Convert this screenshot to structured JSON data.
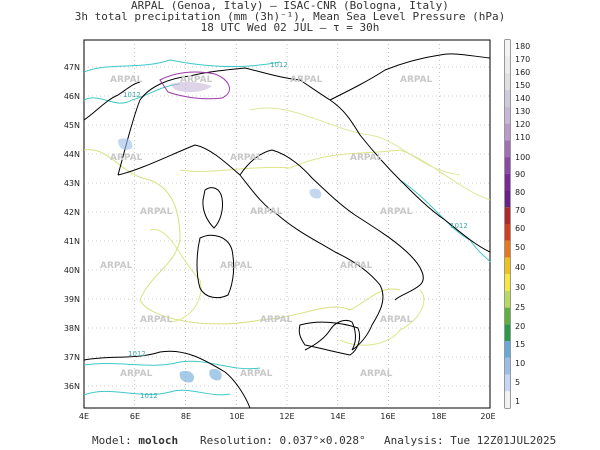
{
  "header": {
    "line1": "ARPAL (Genoa, Italy)  –  ISAC-CNR (Bologna, Italy)",
    "line2": "3h total precipitation (mm (3h)⁻¹), Mean Sea Level Pressure (hPa)",
    "line3": "18 UTC Wed 02 JUL  –  τ = 30h"
  },
  "axes": {
    "lon_labels": [
      "4E",
      "6E",
      "8E",
      "10E",
      "12E",
      "14E",
      "16E",
      "18E",
      "20E"
    ],
    "lat_labels": [
      "47N",
      "46N",
      "45N",
      "44N",
      "43N",
      "42N",
      "41N",
      "40N",
      "39N",
      "38N",
      "37N",
      "36N"
    ]
  },
  "watermark": "ARPAL",
  "isobar_labels": [
    "1012",
    "1012",
    "1012",
    "1012",
    "1012"
  ],
  "colorbar": {
    "labels": [
      "180",
      "170",
      "160",
      "150",
      "140",
      "130",
      "120",
      "110",
      "100",
      "90",
      "80",
      "70",
      "60",
      "50",
      "40",
      "30",
      "25",
      "20",
      "15",
      "10",
      "5",
      "1"
    ],
    "colors": [
      "#f4f4f4",
      "#ececec",
      "#e0e0e0",
      "#d0cbd8",
      "#c8b8d8",
      "#b89cc8",
      "#a070b4",
      "#8a4aa4",
      "#7a2a98",
      "#6a2088",
      "#b0282a",
      "#d04020",
      "#e87820",
      "#f0c020",
      "#f6e840",
      "#b8d860",
      "#60b040",
      "#2a9a4a",
      "#6aa8d8",
      "#9bbde8",
      "#c6d6f4",
      "#f2f2f2"
    ]
  },
  "footer": {
    "model_label": "Model:",
    "model_value": "moloch",
    "resolution": "Resolution: 0.037°×0.028°",
    "analysis": "Analysis: Tue 12Z01JUL2025"
  }
}
